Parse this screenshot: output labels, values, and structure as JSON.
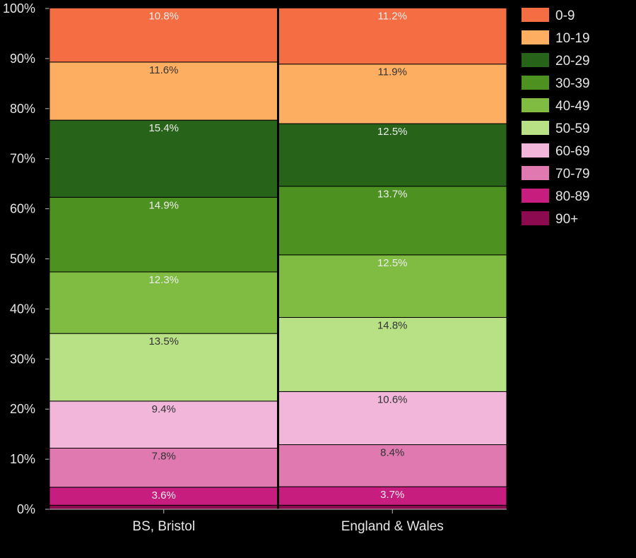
{
  "chart_data": {
    "type": "bar",
    "stacked": true,
    "normalized": true,
    "categories": [
      "BS, Bristol",
      "England & Wales"
    ],
    "ylim": [
      0,
      100
    ],
    "yticks": [
      "0%",
      "10%",
      "20%",
      "30%",
      "40%",
      "50%",
      "60%",
      "70%",
      "80%",
      "90%",
      "100%"
    ],
    "legend_position": "right",
    "grid": false,
    "series": [
      {
        "name": "90+",
        "color": "#8b0a50",
        "values": [
          0.8,
          0.8
        ],
        "labels": [
          "",
          ""
        ]
      },
      {
        "name": "80-89",
        "color": "#c71d7e",
        "values": [
          3.6,
          3.7
        ],
        "labels": [
          "3.6%",
          "3.7%"
        ]
      },
      {
        "name": "70-79",
        "color": "#df79b0",
        "values": [
          7.8,
          8.4
        ],
        "labels": [
          "7.8%",
          "8.4%"
        ]
      },
      {
        "name": "60-69",
        "color": "#f1b6da",
        "values": [
          9.4,
          10.6
        ],
        "labels": [
          "9.4%",
          "10.6%"
        ]
      },
      {
        "name": "50-59",
        "color": "#b8e186",
        "values": [
          13.5,
          14.8
        ],
        "labels": [
          "13.5%",
          "14.8%"
        ]
      },
      {
        "name": "40-49",
        "color": "#7fbc41",
        "values": [
          12.3,
          12.5
        ],
        "labels": [
          "12.3%",
          "12.5%"
        ]
      },
      {
        "name": "30-39",
        "color": "#4d9221",
        "values": [
          14.9,
          13.7
        ],
        "labels": [
          "14.9%",
          "13.7%"
        ]
      },
      {
        "name": "20-29",
        "color": "#276419",
        "values": [
          15.4,
          12.5
        ],
        "labels": [
          "15.4%",
          "12.5%"
        ]
      },
      {
        "name": "10-19",
        "color": "#fdae61",
        "values": [
          11.6,
          11.9
        ],
        "labels": [
          "11.6%",
          "11.9%"
        ]
      },
      {
        "name": "0-9",
        "color": "#f46d43",
        "values": [
          10.8,
          11.2
        ],
        "labels": [
          "10.8%",
          "11.2%"
        ]
      }
    ]
  }
}
